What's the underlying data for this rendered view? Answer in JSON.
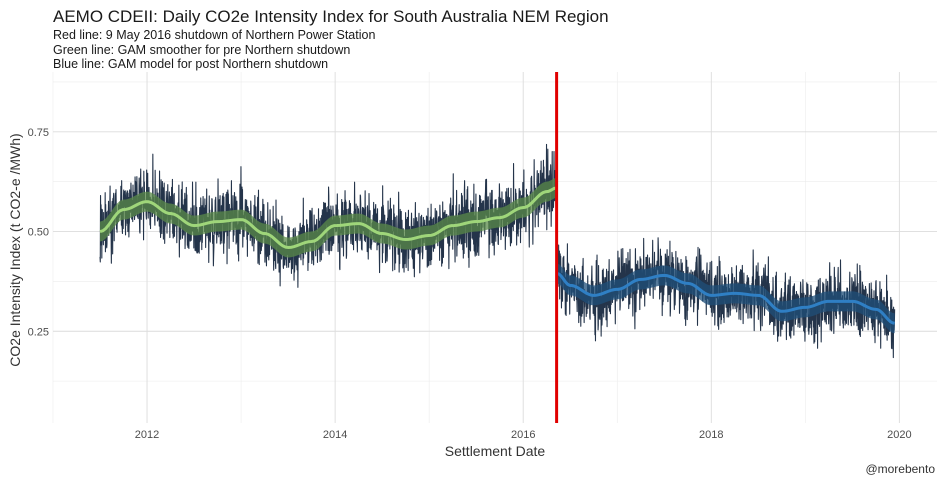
{
  "chart_data": {
    "type": "line",
    "title": "AEMO CDEII: Daily CO2e Intensity Index for South Australia NEM Region",
    "subtitle_lines": [
      "Red line:  9 May 2016 shutdown of Northern Power Station",
      "Green line: GAM smoother for pre Northern shutdown",
      "Blue line: GAM model for post Northern shutdown"
    ],
    "xlabel": "Settlement Date",
    "ylabel": "CO2e Intensity Index (t CO2-e /MWh)",
    "caption": "@morebento",
    "xlim": [
      2011.0,
      2020.4
    ],
    "ylim": [
      0.02,
      0.9
    ],
    "x_ticks": [
      "2012",
      "2014",
      "2016",
      "2018",
      "2020"
    ],
    "y_ticks": [
      "0.25",
      "0.50",
      "0.75"
    ],
    "grid": true,
    "shutdown_date": "2016-05-09",
    "colors": {
      "daily": "#24344a",
      "gam_pre": "#9fd67a",
      "gam_pre_band": "#5a8a4a",
      "gam_post": "#2f7fc4",
      "gam_post_band": "#1f4f7a",
      "shutdown": "#e00000",
      "grid": "#dcdcdc"
    },
    "series": [
      {
        "name": "Daily CO2e intensity",
        "x_range": [
          2011.5,
          2019.95
        ],
        "pre_mean_range": [
          0.45,
          0.62
        ],
        "post_mean_range": [
          0.27,
          0.39
        ]
      },
      {
        "name": "GAM smoother pre Northern shutdown",
        "x": [
          2011.5,
          2011.75,
          2012.0,
          2012.25,
          2012.5,
          2012.75,
          2013.0,
          2013.25,
          2013.5,
          2013.75,
          2014.0,
          2014.25,
          2014.5,
          2014.75,
          2015.0,
          2015.25,
          2015.5,
          2015.75,
          2016.0,
          2016.25,
          2016.36
        ],
        "y": [
          0.5,
          0.555,
          0.575,
          0.545,
          0.515,
          0.525,
          0.53,
          0.495,
          0.46,
          0.475,
          0.515,
          0.52,
          0.495,
          0.48,
          0.49,
          0.515,
          0.525,
          0.535,
          0.56,
          0.6,
          0.61
        ]
      },
      {
        "name": "GAM model post Northern shutdown",
        "x": [
          2016.36,
          2016.5,
          2016.75,
          2017.0,
          2017.25,
          2017.5,
          2017.75,
          2018.0,
          2018.25,
          2018.5,
          2018.75,
          2019.0,
          2019.25,
          2019.5,
          2019.75,
          2019.95
        ],
        "y": [
          0.395,
          0.365,
          0.34,
          0.355,
          0.38,
          0.39,
          0.37,
          0.34,
          0.345,
          0.34,
          0.3,
          0.31,
          0.325,
          0.325,
          0.305,
          0.27
        ]
      }
    ]
  }
}
